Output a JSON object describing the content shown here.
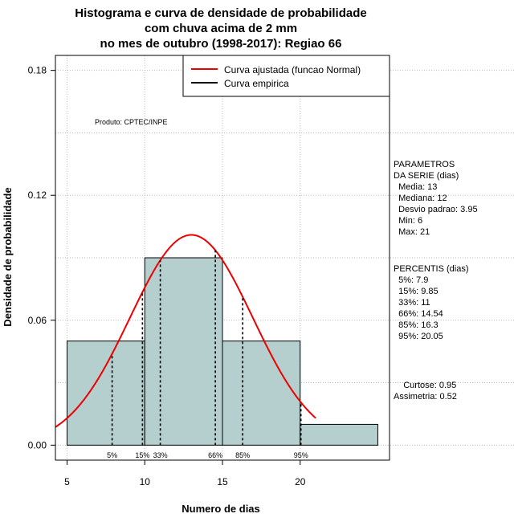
{
  "chart_data": {
    "type": "histogram",
    "title": [
      "Histograma e curva de densidade de probabilidade",
      "com chuva acima de 2 mm",
      "no mes de outubro (1998-2017): Regiao 66"
    ],
    "xlabel": "Numero de dias",
    "ylabel": "Densidade de probabilidade",
    "xlim": [
      4.25,
      25.75
    ],
    "ylim": [
      -0.0072,
      0.1872
    ],
    "x_ticks": [
      "5",
      "10",
      "15",
      "20"
    ],
    "y_ticks": [
      "0.00",
      "0.06",
      "0.12",
      "0.18"
    ],
    "y_tick_values": [
      0,
      0.06,
      0.12,
      0.18
    ],
    "grid": true,
    "bins": [
      {
        "from": 5,
        "to": 10,
        "density": 0.05
      },
      {
        "from": 10,
        "to": 15,
        "density": 0.09
      },
      {
        "from": 15,
        "to": 20,
        "density": 0.05
      },
      {
        "from": 20,
        "to": 25,
        "density": 0.01
      }
    ],
    "bar_color": "#b5cece",
    "normal_curve": {
      "mean": 13,
      "sd": 3.95,
      "x_from": 4.25,
      "x_to": 21,
      "color": "#ee0000"
    },
    "percentile_lines": [
      {
        "label": "5%",
        "x": 7.9
      },
      {
        "label": "15%",
        "x": 9.85
      },
      {
        "label": "33%",
        "x": 11
      },
      {
        "label": "66%",
        "x": 14.54
      },
      {
        "label": "85%",
        "x": 16.3
      },
      {
        "label": "95%",
        "x": 20.05
      }
    ],
    "legend": {
      "position": "top-right",
      "entries": [
        {
          "label": "Curva ajustada (funcao Normal)",
          "color": "#ee0000"
        },
        {
          "label": "Curva empirica",
          "color": "#000000"
        }
      ]
    },
    "annotation": "Produto: CPTEC/INPE",
    "side_panel": {
      "params_lines": [
        "PARAMETROS",
        "DA SERIE (dias)",
        "  Media: 13",
        "  Mediana: 12",
        "  Desvio padrao: 3.95",
        "  Min: 6",
        "  Max: 21"
      ],
      "percentis_lines": [
        "PERCENTIS (dias)",
        "  5%: 7.9",
        "  15%: 9.85",
        "  33%: 11",
        "  66%: 14.54",
        "  85%: 16.3",
        "  95%: 20.05"
      ],
      "stats_lines": [
        "    Curtose: 0.95",
        "Assimetria: 0.52"
      ]
    }
  }
}
